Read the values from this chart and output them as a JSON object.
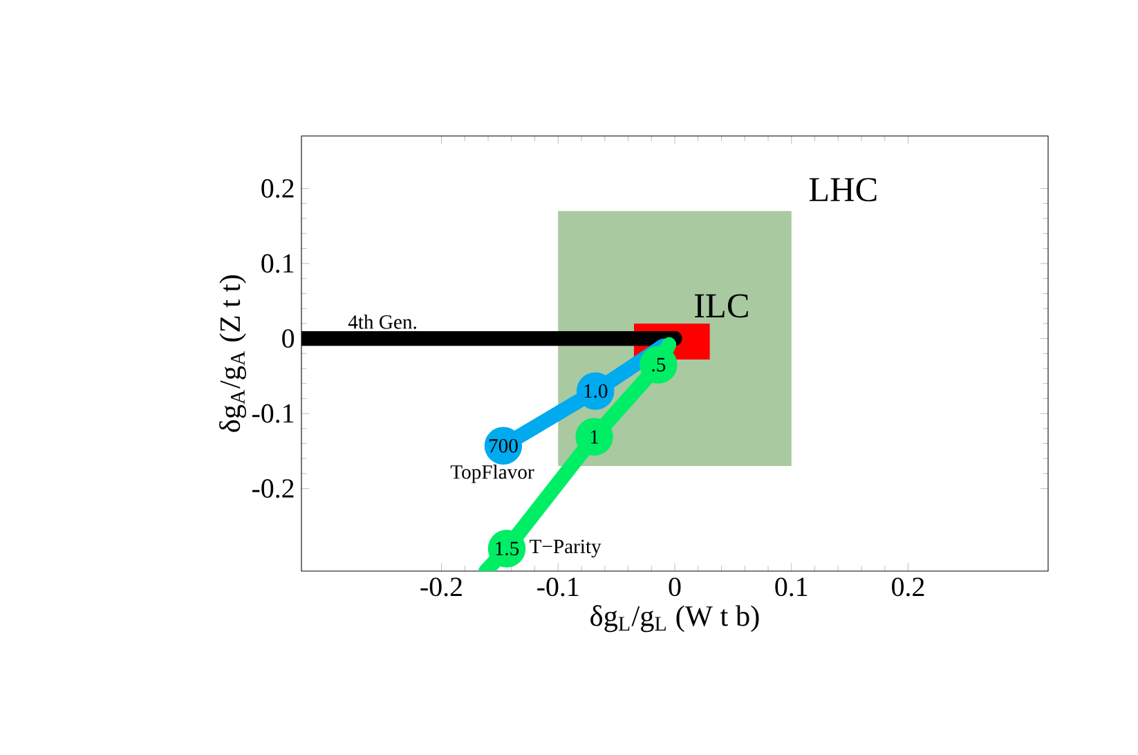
{
  "chart_data": {
    "type": "line",
    "xlabel": "δg$_{L}$/g$_{L}$ (W t b)",
    "ylabel": "δg$_{A}$/g$_{A}$ (Z t t)",
    "xlim": [
      -0.32,
      0.32
    ],
    "ylim": [
      -0.31,
      0.27
    ],
    "xticks": [
      -0.2,
      -0.1,
      0,
      0.1,
      0.2
    ],
    "yticks": [
      -0.2,
      -0.1,
      0,
      0.1,
      0.2
    ],
    "series": [
      {
        "name": "LHC",
        "type": "area",
        "color": "#a9c9a1",
        "x": [
          -0.1,
          -0.1,
          0.1,
          0.1
        ],
        "values": [
          -0.17,
          0.17,
          0.17,
          -0.17
        ]
      },
      {
        "name": "ILC",
        "type": "area",
        "color": "#ff0000",
        "x": [
          -0.035,
          -0.035,
          0.03,
          0.03
        ],
        "values": [
          -0.028,
          0.02,
          0.02,
          -0.028
        ]
      },
      {
        "name": "4th Gen.",
        "color": "#000000",
        "marker": "none",
        "x": [
          -0.32,
          0
        ],
        "values": [
          0,
          0
        ]
      },
      {
        "name": "TopFlavor",
        "color": "#00aaee",
        "marker": "circle",
        "x": [
          -0.147,
          -0.068,
          -0.01
        ],
        "values": [
          -0.143,
          -0.07,
          -0.01
        ]
      },
      {
        "name": "T−Parity",
        "color": "#00ee66",
        "marker": "circle",
        "x": [
          -0.162,
          -0.144,
          -0.069,
          -0.014,
          -0.005
        ],
        "values": [
          -0.31,
          -0.28,
          -0.131,
          -0.035,
          -0.008
        ]
      }
    ],
    "annotations": [
      {
        "text": "700",
        "x": -0.147,
        "y": -0.143
      },
      {
        "text": "1.0",
        "x": -0.068,
        "y": -0.07
      },
      {
        "text": "1.5",
        "x": -0.144,
        "y": -0.28
      },
      {
        "text": "1",
        "x": -0.069,
        "y": -0.131
      },
      {
        "text": ".5",
        "x": -0.014,
        "y": -0.035
      }
    ]
  }
}
